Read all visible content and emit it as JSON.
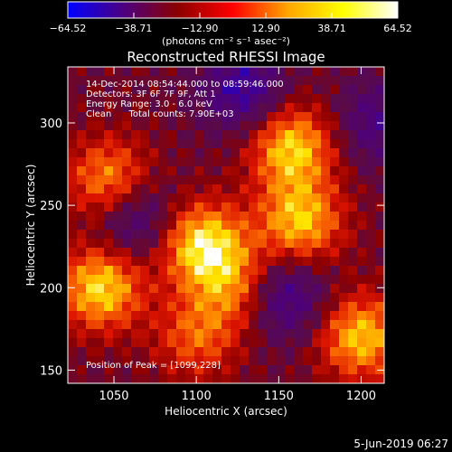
{
  "chart_data": {
    "type": "heatmap",
    "title": "Reconstructed RHESSI Image",
    "xlabel": "Heliocentric X (arcsec)",
    "ylabel": "Heliocentric Y (arcsec)",
    "xlim": [
      1022,
      1214
    ],
    "ylim": [
      142,
      334
    ],
    "x_ticks": [
      1050,
      1100,
      1150,
      1200
    ],
    "y_ticks": [
      150,
      200,
      250,
      300
    ],
    "colorbar": {
      "range": [
        -64.52,
        64.52
      ],
      "ticks": [
        "−64.52",
        "−38.71",
        "−12.90",
        "12.90",
        "38.71",
        "64.52"
      ],
      "unit_label": "(photons cm⁻² s⁻¹ asec⁻²)",
      "colors": [
        "#0000ff",
        "#4b0082",
        "#8b0000",
        "#ff0000",
        "#ffa500",
        "#ffff00",
        "#ffffff"
      ]
    },
    "annotations": [
      "14-Dec-2014 08:54:44.000 to 08:59:46.000",
      "Detectors: 3F 6F 7F 9F, Att 1",
      "Energy Range: 3.0 - 6.0 keV",
      "Clean      Total counts: 7.90E+03"
    ],
    "peak_label": "Position of Peak = [1099,228]",
    "peak": [
      1099,
      228
    ],
    "sources": [
      {
        "x": 1104,
        "y": 226,
        "amp": 64.5
      },
      {
        "x": 1042,
        "y": 200,
        "amp": 60
      },
      {
        "x": 1047,
        "y": 265,
        "amp": 48
      },
      {
        "x": 1158,
        "y": 285,
        "amp": 58
      },
      {
        "x": 1163,
        "y": 240,
        "amp": 55
      },
      {
        "x": 1200,
        "y": 170,
        "amp": 55
      },
      {
        "x": 1100,
        "y": 170,
        "amp": 35
      },
      {
        "x": 1125,
        "y": 200,
        "amp": 40
      }
    ],
    "negatives": [
      {
        "x": 1128,
        "y": 320,
        "amp": -40
      },
      {
        "x": 1062,
        "y": 242,
        "amp": -35
      },
      {
        "x": 1152,
        "y": 195,
        "amp": -42
      },
      {
        "x": 1210,
        "y": 300,
        "amp": -30
      }
    ]
  },
  "footer": {
    "date": "5-Jun-2019 06:27"
  }
}
